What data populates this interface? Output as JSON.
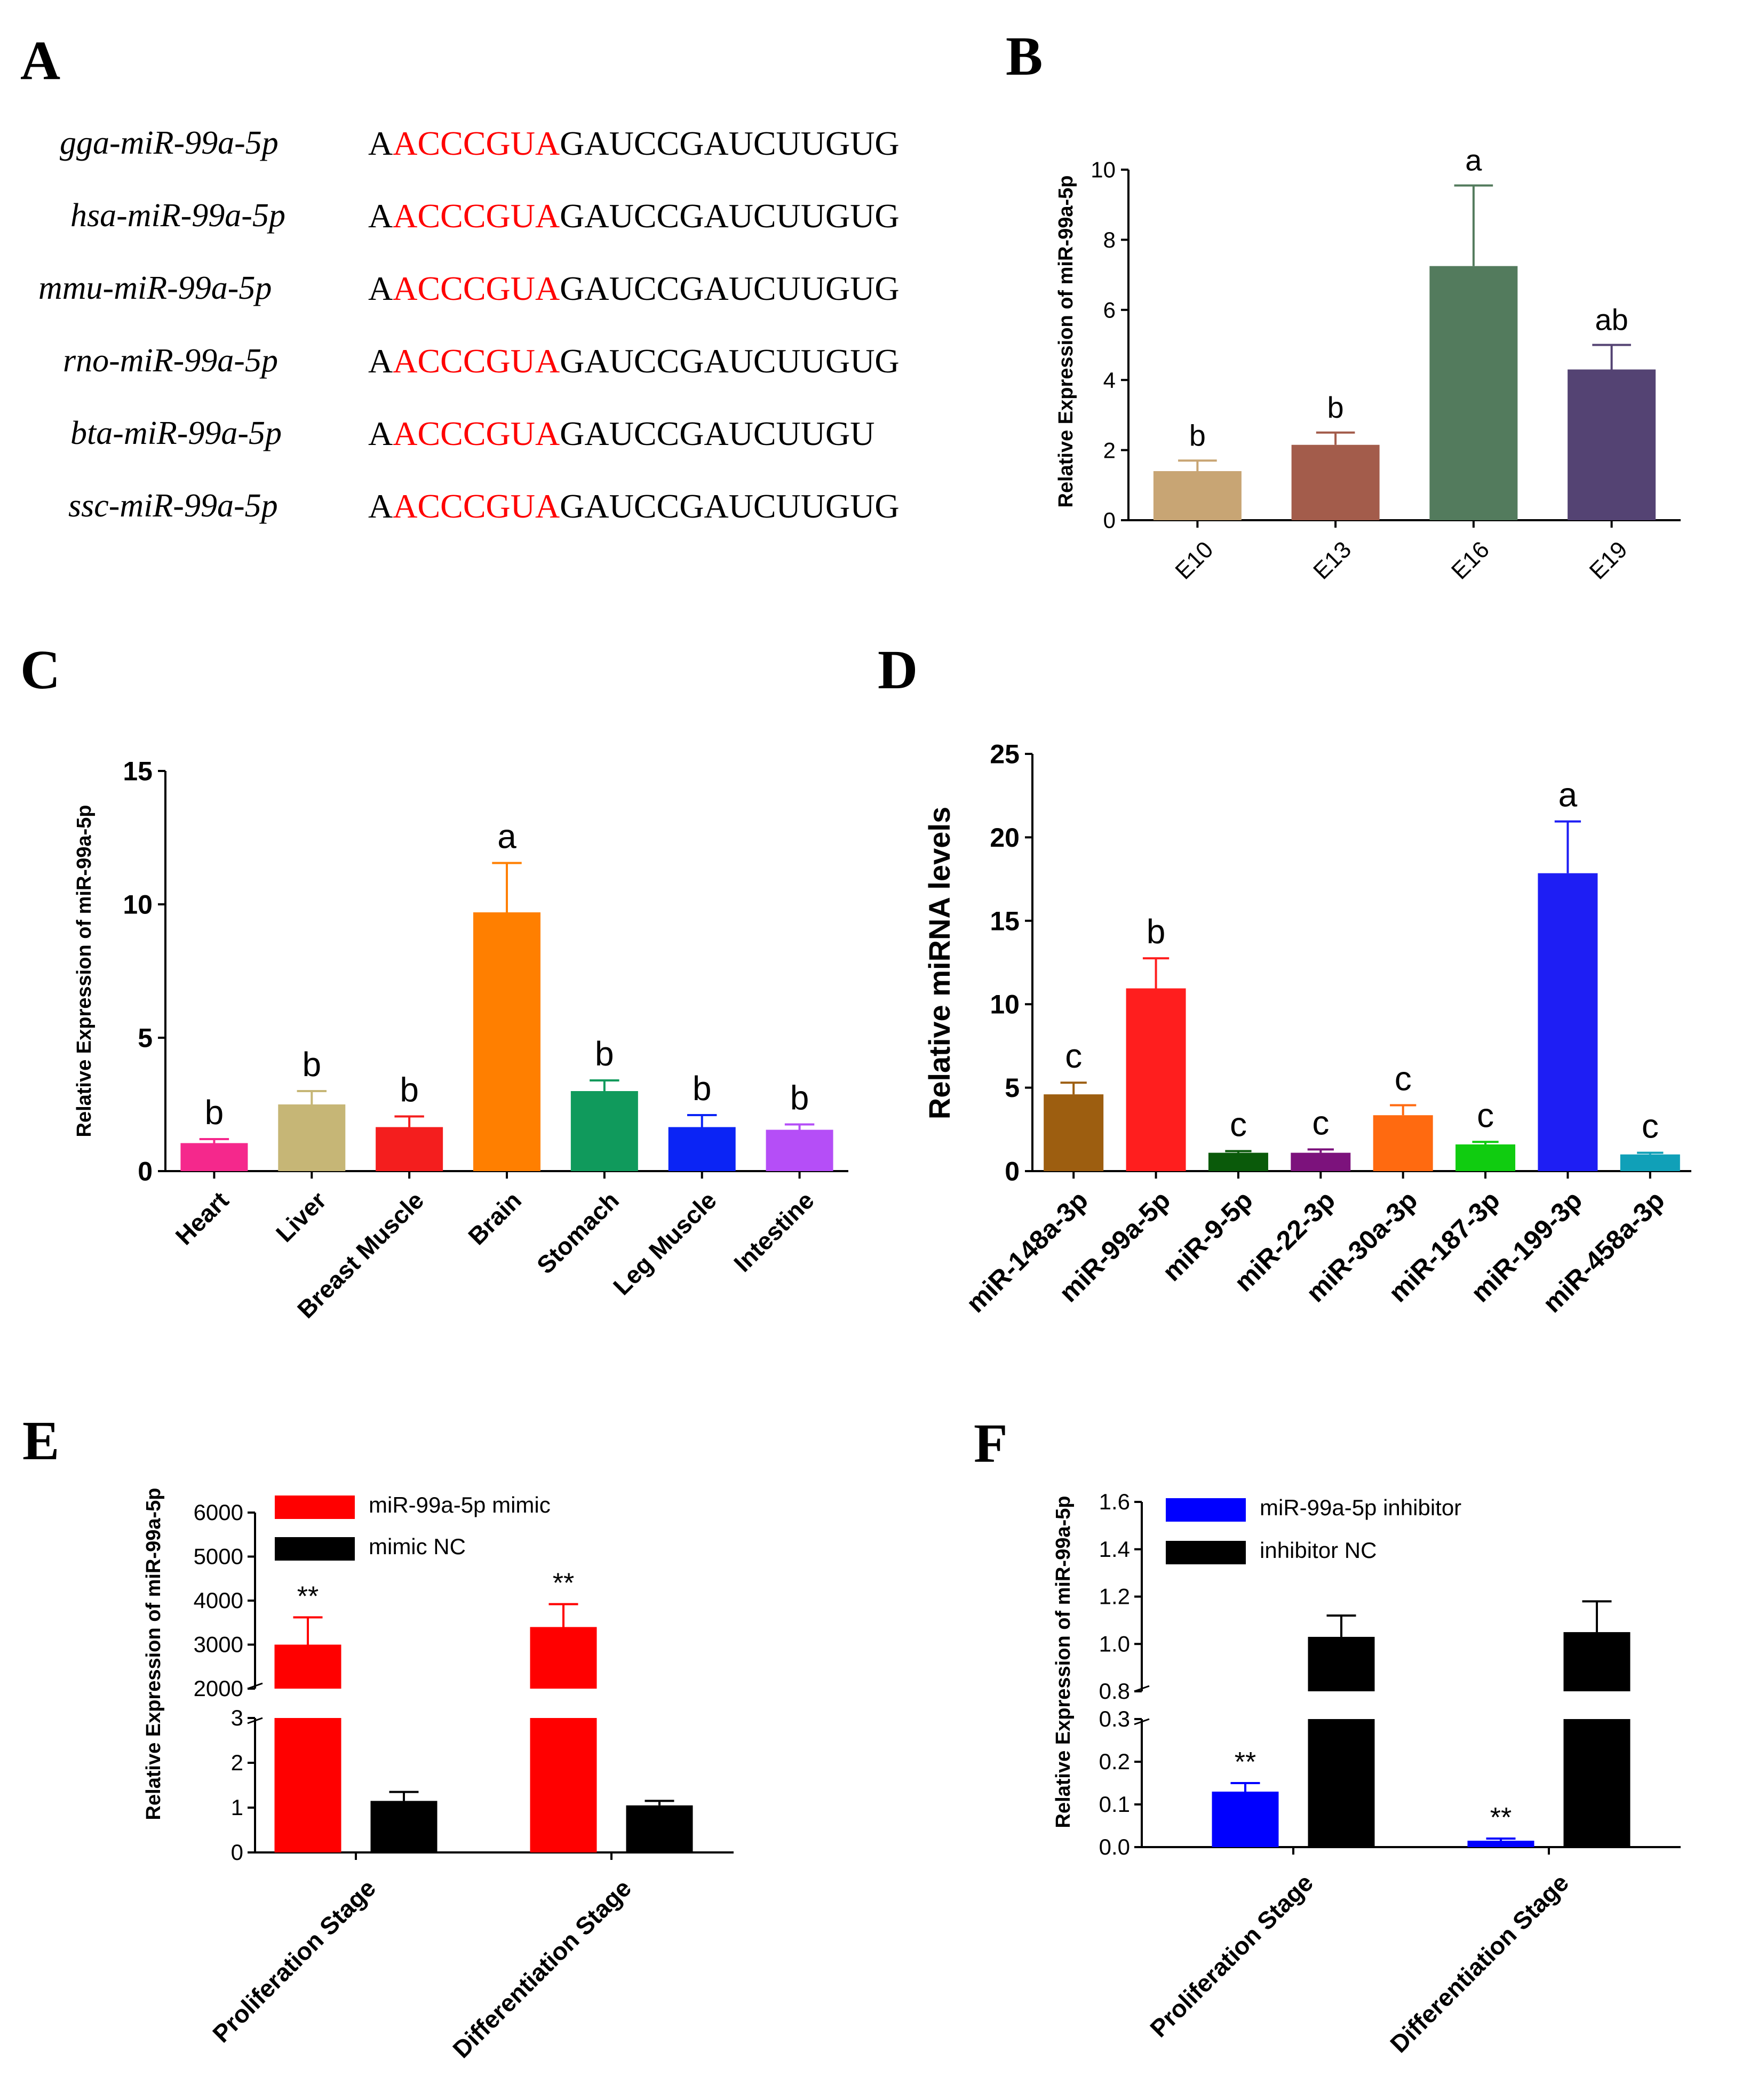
{
  "panels": {
    "A": "A",
    "B": "B",
    "C": "C",
    "D": "D",
    "E": "E",
    "F": "F"
  },
  "alignment": {
    "rows": [
      {
        "name": "gga-miR-99a-5p",
        "prefix": "A",
        "seed": "ACCCGUA",
        "suffix": "GAUCCGAUCUUGUG"
      },
      {
        "name": "hsa-miR-99a-5p",
        "prefix": "A",
        "seed": "ACCCGUA",
        "suffix": "GAUCCGAUCUUGUG"
      },
      {
        "name": "mmu-miR-99a-5p",
        "prefix": "A",
        "seed": "ACCCGUA",
        "suffix": "GAUCCGAUCUUGUG"
      },
      {
        "name": "rno-miR-99a-5p",
        "prefix": "A",
        "seed": "ACCCGUA",
        "suffix": "GAUCCGAUCUUGUG"
      },
      {
        "name": "bta-miR-99a-5p",
        "prefix": "A",
        "seed": "ACCCGUA",
        "suffix": "GAUCCGAUCUUGU"
      },
      {
        "name": "ssc-miR-99a-5p",
        "prefix": "A",
        "seed": "ACCCGUA",
        "suffix": "GAUCCGAUCUUGUG"
      }
    ]
  },
  "chart_data": [
    {
      "panel": "B",
      "type": "bar",
      "ylabel": "Relative Expression of miR-99a-5p",
      "ylim": [
        0,
        10
      ],
      "yticks": [
        "0",
        "2",
        "4",
        "6",
        "8",
        "10"
      ],
      "categories": [
        "E10",
        "E13",
        "E16",
        "E19"
      ],
      "values": [
        1.4,
        2.15,
        7.25,
        4.3
      ],
      "errors": [
        0.3,
        0.35,
        2.3,
        0.7
      ],
      "labels": [
        "b",
        "b",
        "a",
        "ab"
      ],
      "colors": [
        "#c8a574",
        "#a35c4b",
        "#537b5d",
        "#544373"
      ]
    },
    {
      "panel": "C",
      "type": "bar",
      "ylabel": "Relative Expression of miR-99a-5p",
      "ylim": [
        0,
        15
      ],
      "yticks": [
        "0",
        "5",
        "10",
        "15"
      ],
      "categories": [
        "Heart",
        "Liver",
        "Breast Muscle",
        "Brain",
        "Stomach",
        "Leg Muscle",
        "Intestine"
      ],
      "values": [
        1.05,
        2.5,
        1.65,
        9.7,
        3.0,
        1.65,
        1.55
      ],
      "errors": [
        0.15,
        0.5,
        0.4,
        1.85,
        0.4,
        0.45,
        0.2
      ],
      "labels": [
        "b",
        "b",
        "b",
        "a",
        "b",
        "b",
        "b"
      ],
      "colors": [
        "#f5288c",
        "#c6b676",
        "#f41e1e",
        "#ff7f00",
        "#109a5c",
        "#0b24f5",
        "#b54ef7"
      ]
    },
    {
      "panel": "D",
      "type": "bar",
      "ylabel": "Relative miRNA levels",
      "ylim": [
        0,
        25
      ],
      "yticks": [
        "0",
        "5",
        "10",
        "15",
        "20",
        "25"
      ],
      "categories": [
        "miR-148a-3p",
        "miR-99a-5p",
        "miR-9-5p",
        "miR-22-3p",
        "miR-30a-3p",
        "miR-187-3p",
        "miR-199-3p",
        "miR-458a-3p"
      ],
      "values": [
        4.6,
        10.95,
        1.1,
        1.1,
        3.35,
        1.6,
        17.85,
        1.0
      ],
      "errors": [
        0.7,
        1.8,
        0.1,
        0.2,
        0.6,
        0.15,
        3.1,
        0.1
      ],
      "labels": [
        "c",
        "b",
        "c",
        "c",
        "c",
        "c",
        "a",
        "c"
      ],
      "colors": [
        "#9d5e10",
        "#ff1e1e",
        "#0a5a0a",
        "#7c127c",
        "#ff6a10",
        "#10cc10",
        "#1e1ef4",
        "#10a0b8"
      ]
    },
    {
      "panel": "E",
      "type": "bar",
      "ylabel": "Relative Expression of miR-99a-5p",
      "broken_axis": true,
      "upper_ylim": [
        2000,
        6000
      ],
      "upper_yticks": [
        "2000",
        "3000",
        "4000",
        "5000",
        "6000"
      ],
      "lower_ylim": [
        0,
        3
      ],
      "lower_yticks": [
        "0",
        "1",
        "2",
        "3"
      ],
      "categories": [
        "Proliferation Stage",
        "Differentiation Stage"
      ],
      "series": [
        {
          "name": "miR-99a-5p mimic",
          "color": "#ff0000",
          "values": [
            3000,
            3400
          ],
          "errors": [
            620,
            520
          ],
          "significance": [
            "**",
            "**"
          ]
        },
        {
          "name": "mimic NC",
          "color": "#000000",
          "values": [
            1.15,
            1.05
          ],
          "errors": [
            0.2,
            0.1
          ],
          "significance": [
            "",
            ""
          ]
        }
      ]
    },
    {
      "panel": "F",
      "type": "bar",
      "ylabel": "Relative Expression of miR-99a-5p",
      "broken_axis": true,
      "upper_ylim": [
        0.8,
        1.6
      ],
      "upper_yticks": [
        "0.8",
        "1.0",
        "1.2",
        "1.4",
        "1.6"
      ],
      "lower_ylim": [
        0,
        0.3
      ],
      "lower_yticks": [
        "0.0",
        "0.1",
        "0.2",
        "0.3"
      ],
      "categories": [
        "Proliferation Stage",
        "Differentiation Stage"
      ],
      "series": [
        {
          "name": "miR-99a-5p inhibitor",
          "color": "#0000ff",
          "values": [
            0.13,
            0.015
          ],
          "errors": [
            0.02,
            0.005
          ],
          "significance": [
            "**",
            "**"
          ]
        },
        {
          "name": "inhibitor NC",
          "color": "#000000",
          "values": [
            1.03,
            1.05
          ],
          "errors": [
            0.09,
            0.13
          ],
          "significance": [
            "",
            ""
          ]
        }
      ]
    }
  ]
}
